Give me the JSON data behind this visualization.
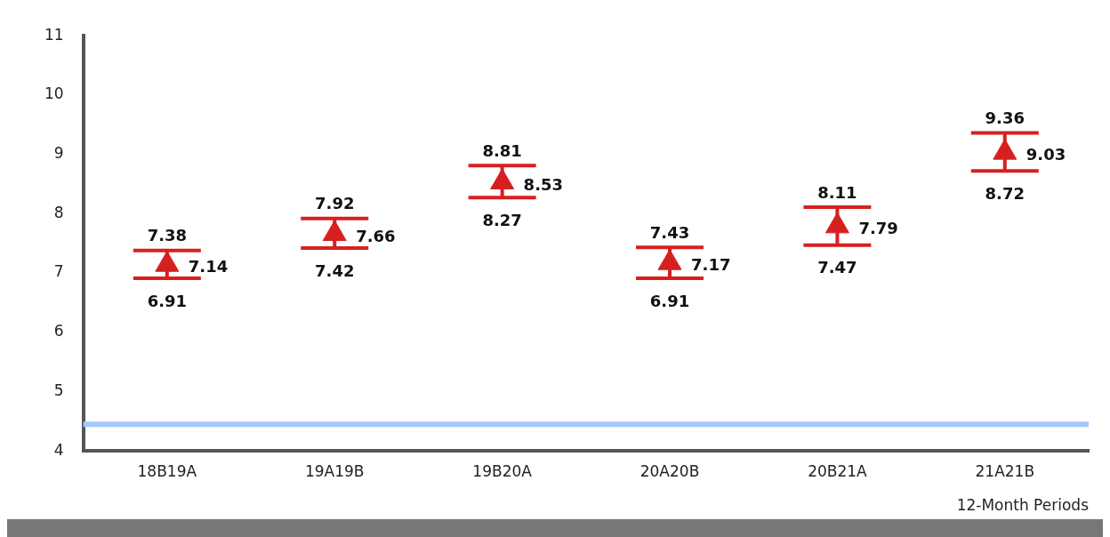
{
  "chart_data": {
    "type": "scatter",
    "xlabel": "12-Month Periods",
    "categories": [
      "18B19A",
      "19A19B",
      "19B20A",
      "20A20B",
      "20B21A",
      "21A21B"
    ],
    "values": [
      7.14,
      7.66,
      8.53,
      7.17,
      7.79,
      9.03
    ],
    "errors": [
      [
        6.91,
        7.38
      ],
      [
        7.42,
        7.92
      ],
      [
        8.27,
        8.81
      ],
      [
        6.91,
        7.43
      ],
      [
        7.47,
        8.11
      ],
      [
        8.72,
        9.36
      ]
    ],
    "color": "#d62020",
    "marker": "triangle",
    "data_labels": true,
    "ylim": [
      4,
      11
    ],
    "yticks": [
      4,
      5,
      6,
      7,
      8,
      9,
      10,
      11
    ],
    "grid": false,
    "legend": false,
    "annotations": [
      {
        "text": "7.38",
        "x": "18B19A",
        "y": 7.38
      },
      {
        "text": "6.91",
        "x": "18B19A",
        "y": 6.91
      },
      {
        "text": "7.92",
        "x": "19A19B",
        "y": 7.92
      },
      {
        "text": "7.42",
        "x": "19A19B",
        "y": 7.42
      },
      {
        "text": "8.81",
        "x": "19B20A",
        "y": 8.81
      },
      {
        "text": "8.27",
        "x": "19B20A",
        "y": 8.27
      },
      {
        "text": "7.43",
        "x": "20A20B",
        "y": 7.43
      },
      {
        "text": "6.91",
        "x": "20A20B",
        "y": 6.91
      },
      {
        "text": "8.11",
        "x": "20B21A",
        "y": 8.11
      },
      {
        "text": "7.47",
        "x": "20B21A",
        "y": 7.47
      },
      {
        "text": "9.36",
        "x": "21A21B",
        "y": 9.36
      },
      {
        "text": "8.72",
        "x": "21A21B",
        "y": 8.72
      }
    ],
    "ref_lines": [
      {
        "axis": "y",
        "value": 4.45,
        "color": "#a4c8f8"
      }
    ]
  }
}
